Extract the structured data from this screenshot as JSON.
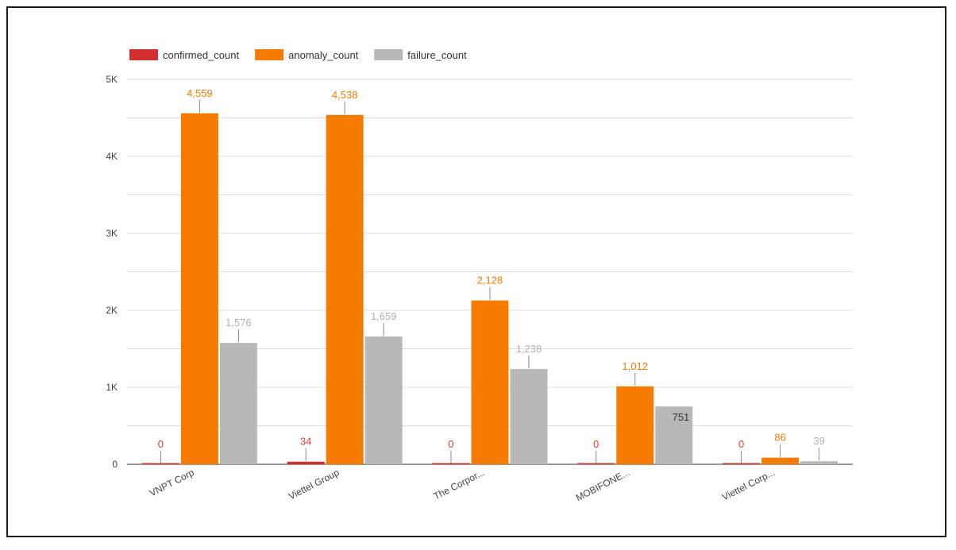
{
  "chart_data": {
    "type": "bar",
    "categories": [
      "VNPT Corp",
      "Viettel Group",
      "The Corpor...",
      "MOBIFONE...",
      "Viettel Corp..."
    ],
    "series": [
      {
        "name": "confirmed_count",
        "color": "#d32f2f",
        "values": [
          0,
          34,
          0,
          0,
          0
        ],
        "labels": [
          "0",
          "34",
          "0",
          "0",
          "0"
        ]
      },
      {
        "name": "anomaly_count",
        "color": "#f57c00",
        "values": [
          4559,
          4538,
          2128,
          1012,
          86
        ],
        "labels": [
          "4,559",
          "4,538",
          "2,128",
          "1,012",
          "86"
        ]
      },
      {
        "name": "failure_count",
        "color": "#b8b8b8",
        "values": [
          1576,
          1659,
          1238,
          751,
          39
        ],
        "labels": [
          "1,576",
          "1,659",
          "1,238",
          "751",
          "39"
        ]
      }
    ],
    "ylim": [
      0,
      5000
    ],
    "yticks": [
      0,
      1000,
      2000,
      3000,
      4000,
      5000
    ],
    "ytick_labels": [
      "0",
      "1K",
      "2K",
      "3K",
      "4K",
      "5K"
    ],
    "grid": true,
    "legend": "top-left",
    "title": "",
    "xlabel": "",
    "ylabel": ""
  }
}
